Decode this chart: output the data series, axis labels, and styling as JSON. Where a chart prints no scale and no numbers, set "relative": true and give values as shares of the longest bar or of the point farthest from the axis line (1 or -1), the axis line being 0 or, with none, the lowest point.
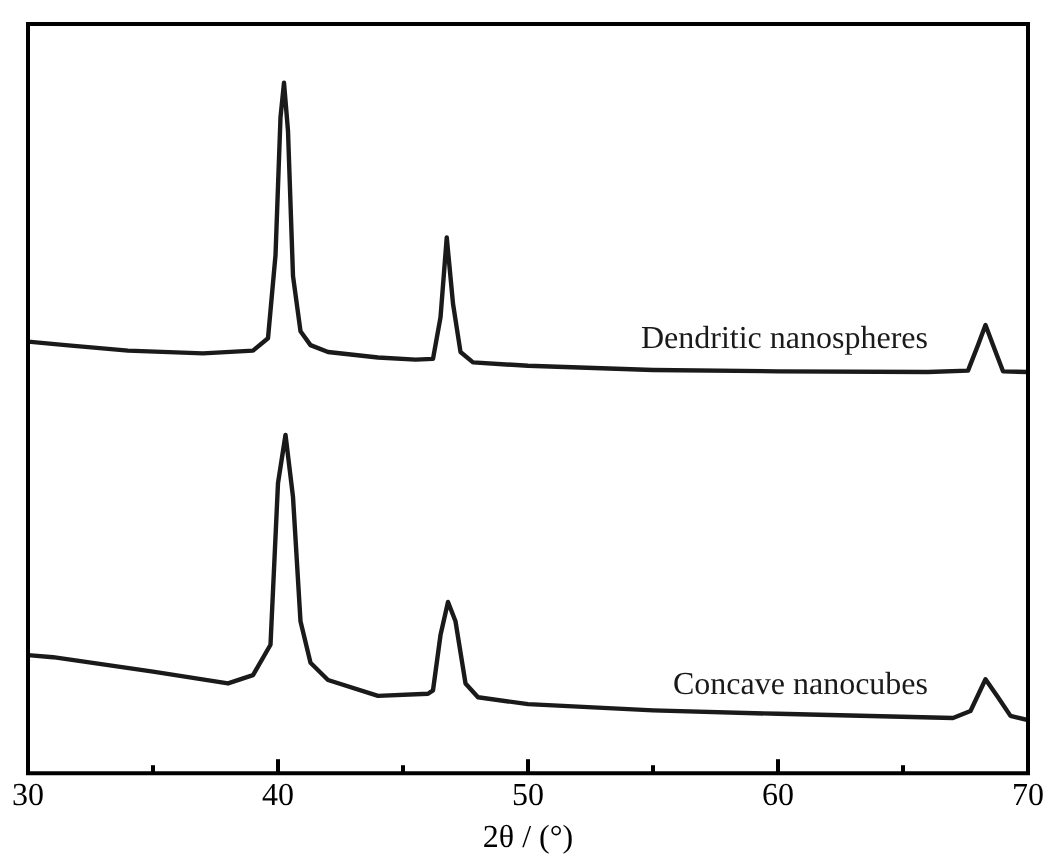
{
  "chart_data": {
    "type": "line",
    "xlabel": "2θ / (°)",
    "relative": true,
    "legend": false,
    "grid": false,
    "marker": "none",
    "line_style": "solid",
    "tick_labels": "x",
    "xlim": [
      30,
      70
    ],
    "xticks": [
      30,
      {
        "value": 35,
        "label": null
      },
      40,
      {
        "value": 45,
        "label": null
      },
      50,
      {
        "value": 55,
        "label": null
      },
      60,
      {
        "value": 65,
        "label": null
      },
      70
    ],
    "series": [
      {
        "name": "Dendritic nanospheres",
        "color": "#1a1a1a",
        "x": [
          30,
          31.5,
          34,
          37,
          39,
          39.6,
          39.9,
          40.1,
          40.24,
          40.4,
          40.6,
          40.9,
          41.3,
          42,
          44,
          45.5,
          46.2,
          46.5,
          46.75,
          47,
          47.3,
          47.8,
          50,
          55,
          60,
          66,
          67.6,
          68,
          68.3,
          68.6,
          69,
          70
        ],
        "values": [
          0.625,
          0.62,
          0.612,
          0.608,
          0.612,
          0.63,
          0.75,
          0.95,
          1,
          0.93,
          0.72,
          0.64,
          0.62,
          0.61,
          0.602,
          0.599,
          0.6,
          0.66,
          0.776,
          0.68,
          0.61,
          0.595,
          0.59,
          0.584,
          0.582,
          0.581,
          0.583,
          0.62,
          0.649,
          0.62,
          0.582,
          0.581
        ]
      },
      {
        "name": "Concave nanocubes",
        "color": "#1a1a1a",
        "x": [
          30,
          31,
          35,
          38,
          39,
          39.7,
          40,
          40.3,
          40.6,
          40.9,
          41.3,
          42,
          44,
          46,
          46.2,
          46.5,
          46.8,
          47.1,
          47.5,
          48,
          50,
          55,
          60,
          67,
          67.7,
          68.3,
          68.8,
          69.3,
          70
        ],
        "values": [
          0.171,
          0.168,
          0.147,
          0.13,
          0.142,
          0.186,
          0.42,
          0.49,
          0.4,
          0.22,
          0.16,
          0.135,
          0.112,
          0.115,
          0.12,
          0.2,
          0.248,
          0.22,
          0.13,
          0.11,
          0.1,
          0.091,
          0.086,
          0.08,
          0.09,
          0.136,
          0.11,
          0.083,
          0.077
        ]
      }
    ]
  }
}
